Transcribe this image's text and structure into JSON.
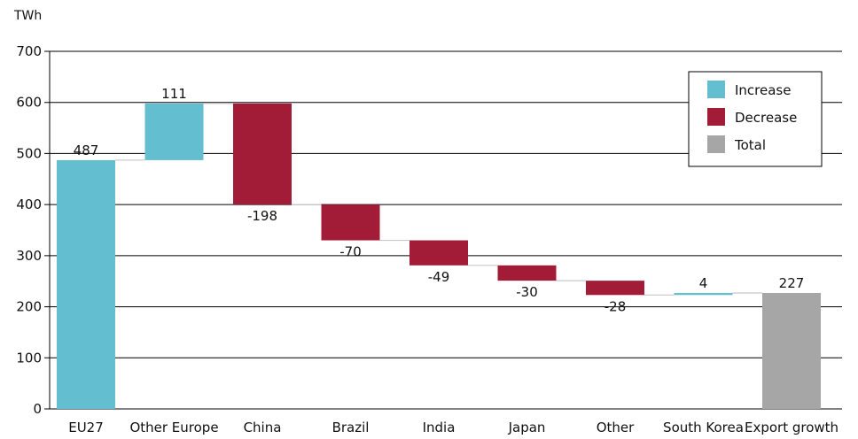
{
  "chart_data": {
    "type": "bar",
    "subtype": "waterfall",
    "unit_label": "TWh",
    "ylim": [
      0,
      700
    ],
    "yticks": [
      0,
      100,
      200,
      300,
      400,
      500,
      600,
      700
    ],
    "grid": true,
    "legend_position": "top-right",
    "legend": [
      {
        "key": "increase",
        "label": "Increase",
        "color": "#63bfcf"
      },
      {
        "key": "decrease",
        "label": "Decrease",
        "color": "#a31c37"
      },
      {
        "key": "total",
        "label": "Total",
        "color": "#a6a6a6"
      }
    ],
    "categories": [
      "EU27",
      "Other Europe",
      "China",
      "Brazil",
      "India",
      "Japan",
      "Other",
      "South Korea",
      "Export growth"
    ],
    "values": [
      487,
      111,
      -198,
      -70,
      -49,
      -30,
      -28,
      4,
      227
    ],
    "value_labels": [
      "487",
      "111",
      "-198",
      "-70",
      "-49",
      "-30",
      "-28",
      "4",
      "227"
    ],
    "kinds": [
      "increase",
      "increase",
      "decrease",
      "decrease",
      "decrease",
      "decrease",
      "decrease",
      "increase",
      "total"
    ]
  }
}
